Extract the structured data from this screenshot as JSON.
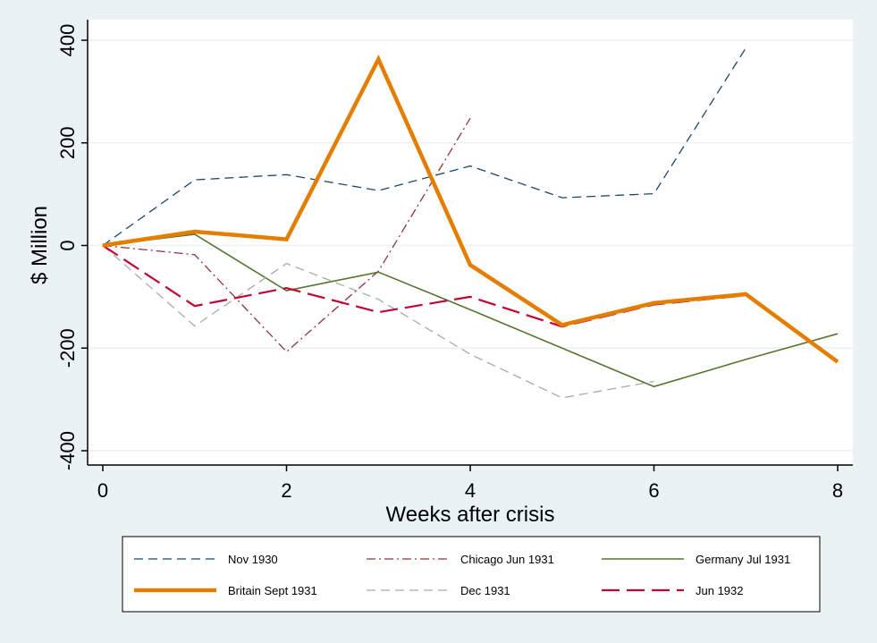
{
  "chart_data": {
    "type": "line",
    "title": "",
    "xlabel": "Weeks after crisis",
    "ylabel": "$ Million",
    "xlim": [
      0,
      8
    ],
    "ylim": [
      -400,
      400
    ],
    "x_ticks": [
      0,
      2,
      4,
      6,
      8
    ],
    "y_ticks": [
      -400,
      -200,
      0,
      200,
      400
    ],
    "grid": true,
    "legend_position": "bottom",
    "series": [
      {
        "name": "Nov 1930",
        "color": "#1a476f",
        "style": "dash",
        "x": [
          0,
          1,
          2,
          3,
          4,
          5,
          6,
          7
        ],
        "values": [
          0,
          128,
          138,
          107,
          155,
          93,
          101,
          385
        ]
      },
      {
        "name": "Chicago Jun 1931",
        "color": "#90353b",
        "style": "dashdot",
        "x": [
          0,
          1,
          2,
          3,
          4
        ],
        "values": [
          0,
          -18,
          -207,
          -50,
          248
        ]
      },
      {
        "name": "Germany Jul 1931",
        "color": "#55752f",
        "style": "solid",
        "x": [
          0,
          1,
          2,
          3,
          4,
          5,
          6,
          7,
          8
        ],
        "values": [
          0,
          22,
          -88,
          -52,
          -125,
          -200,
          -275,
          -222,
          -172
        ]
      },
      {
        "name": "Britain Sept 1931",
        "color": "#e37e00",
        "style": "thick",
        "x": [
          0,
          1,
          2,
          3,
          4,
          5,
          6,
          7,
          8
        ],
        "values": [
          0,
          27,
          12,
          363,
          -38,
          -155,
          -112,
          -95,
          -227
        ]
      },
      {
        "name": "Dec 1931",
        "color": "#a9a9a9",
        "style": "dash",
        "x": [
          0,
          1,
          2,
          3,
          4,
          5,
          6
        ],
        "values": [
          0,
          -157,
          -35,
          -105,
          -212,
          -297,
          -265
        ]
      },
      {
        "name": "Jun 1932",
        "color": "#c10534",
        "style": "longdash",
        "x": [
          0,
          1,
          2,
          3,
          4,
          5,
          6,
          7
        ],
        "values": [
          0,
          -118,
          -83,
          -130,
          -100,
          -158,
          -115,
          -97
        ]
      }
    ]
  }
}
